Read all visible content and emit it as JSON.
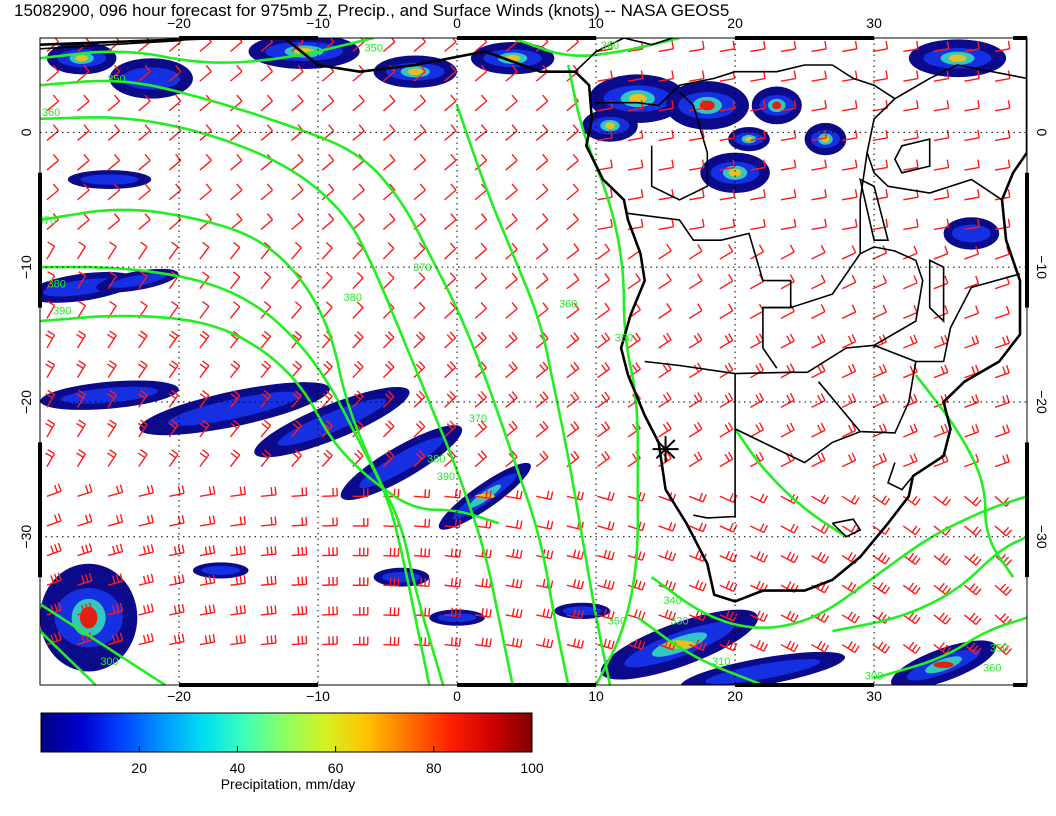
{
  "title": "15082900, 096 hour forecast for 975mb Z, Precip., and Surface Winds (knots) -- NASA GEOS5",
  "map": {
    "lon_range": [
      -30,
      41
    ],
    "lat_range": [
      -41,
      7
    ],
    "lon_ticks": [
      -20,
      -10,
      0,
      10,
      20,
      30
    ],
    "lat_ticks": [
      0,
      -10,
      -20,
      -30
    ],
    "lon_tick_labels": [
      "−20",
      "−10",
      "0",
      "10",
      "20",
      "30"
    ],
    "lat_tick_labels": [
      "0",
      "−10",
      "−20",
      "−30"
    ],
    "grid": "dotted",
    "contour_color": "#22ee22",
    "wind_barb_color": "#ff1a1a",
    "coastline_color": "#000000",
    "contour_labels": [
      {
        "text": "350",
        "lon": -24.5,
        "lat": 3.7
      },
      {
        "text": "360",
        "lon": -29.2,
        "lat": 1.2
      },
      {
        "text": "370",
        "lon": -29.5,
        "lat": -6.8
      },
      {
        "text": "380",
        "lon": -28.8,
        "lat": -11.5
      },
      {
        "text": "390",
        "lon": -28.4,
        "lat": -13.5
      },
      {
        "text": "370",
        "lon": -2.5,
        "lat": -10.3
      },
      {
        "text": "380",
        "lon": -7.5,
        "lat": -12.5
      },
      {
        "text": "370",
        "lon": 1.5,
        "lat": -21.5
      },
      {
        "text": "380",
        "lon": -1.5,
        "lat": -24.5
      },
      {
        "text": "390",
        "lon": -0.8,
        "lat": -25.8
      },
      {
        "text": "360",
        "lon": 8.0,
        "lat": -13.0
      },
      {
        "text": "350",
        "lon": 12.0,
        "lat": -15.5
      },
      {
        "text": "350",
        "lon": 11.5,
        "lat": -36.5
      },
      {
        "text": "340",
        "lon": 15.5,
        "lat": -35.0
      },
      {
        "text": "330",
        "lon": 16.0,
        "lat": -36.5
      },
      {
        "text": "310",
        "lon": 19.0,
        "lat": -39.5
      },
      {
        "text": "350",
        "lon": 39.0,
        "lat": -38.5
      },
      {
        "text": "360",
        "lon": 38.5,
        "lat": -40.0
      },
      {
        "text": "300",
        "lon": 30.0,
        "lat": -40.6
      },
      {
        "text": "300",
        "lon": -25.0,
        "lat": -39.5
      },
      {
        "text": "350",
        "lon": -6.0,
        "lat": 6.0
      },
      {
        "text": "360",
        "lon": 11.0,
        "lat": 6.2
      }
    ],
    "marker": {
      "name": "target-star-icon",
      "lon": 15.0,
      "lat": -23.5
    }
  },
  "colorbar": {
    "min": 0,
    "max": 100,
    "ticks": [
      "20",
      "40",
      "60",
      "80",
      "100"
    ],
    "tick_values": [
      20,
      40,
      60,
      80,
      100
    ],
    "label": "Precipitation, mm/day",
    "colors": [
      "#00007f",
      "#0000d0",
      "#0044ff",
      "#0099ff",
      "#00e0f0",
      "#40ffb8",
      "#90ff60",
      "#d8f020",
      "#ffc000",
      "#ff7000",
      "#ff2000",
      "#d00000",
      "#7f0000"
    ]
  }
}
